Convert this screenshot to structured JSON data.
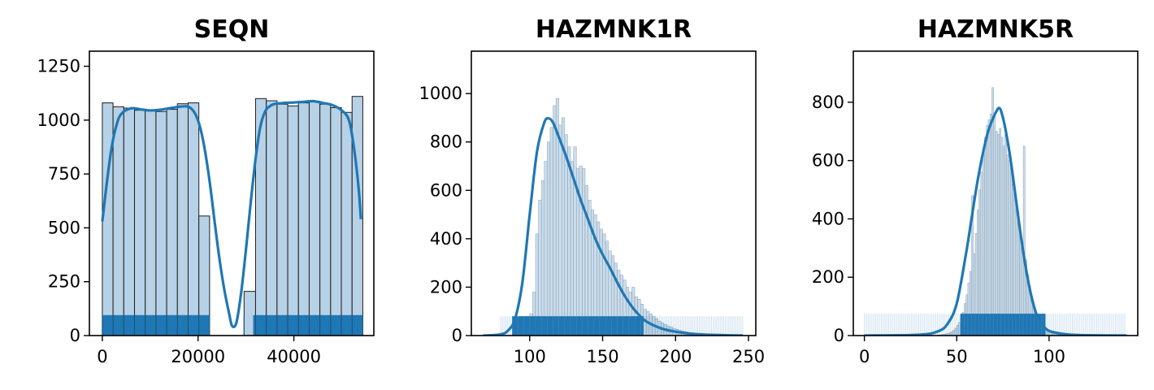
{
  "colors": {
    "bar_fill": "#b7d1e6",
    "bar_stroke": "#1f1f1f",
    "kde_line": "#1f77b4",
    "rug": "#1f77b4"
  },
  "chart_data": [
    {
      "type": "histogram",
      "title": "SEQN",
      "xlabel": "",
      "ylabel": "",
      "xlim": [
        -2700,
        56700
      ],
      "ylim": [
        0,
        1320
      ],
      "xticks": [
        0,
        20000,
        40000
      ],
      "xtick_labels": [
        "0",
        "20000",
        "40000"
      ],
      "yticks": [
        0,
        250,
        500,
        750,
        1000,
        1250
      ],
      "ytick_labels": [
        "0",
        "250",
        "500",
        "750",
        "1000",
        "1250"
      ],
      "bins": [
        {
          "x0": 0,
          "x1": 2240,
          "y": 1080
        },
        {
          "x0": 2240,
          "x1": 4480,
          "y": 1062
        },
        {
          "x0": 4480,
          "x1": 6720,
          "y": 1056
        },
        {
          "x0": 6720,
          "x1": 8960,
          "y": 1046
        },
        {
          "x0": 8960,
          "x1": 11200,
          "y": 1046
        },
        {
          "x0": 11200,
          "x1": 13440,
          "y": 1040
        },
        {
          "x0": 13440,
          "x1": 15680,
          "y": 1050
        },
        {
          "x0": 15680,
          "x1": 17920,
          "y": 1076
        },
        {
          "x0": 17920,
          "x1": 20160,
          "y": 1080
        },
        {
          "x0": 20160,
          "x1": 22400,
          "y": 555
        },
        {
          "x0": 29600,
          "x1": 32000,
          "y": 205
        },
        {
          "x0": 32000,
          "x1": 34240,
          "y": 1100
        },
        {
          "x0": 34240,
          "x1": 36480,
          "y": 1090
        },
        {
          "x0": 36480,
          "x1": 38720,
          "y": 1074
        },
        {
          "x0": 38720,
          "x1": 40960,
          "y": 1066
        },
        {
          "x0": 40960,
          "x1": 43200,
          "y": 1080
        },
        {
          "x0": 43200,
          "x1": 45440,
          "y": 1088
        },
        {
          "x0": 45440,
          "x1": 47680,
          "y": 1074
        },
        {
          "x0": 47680,
          "x1": 49920,
          "y": 1058
        },
        {
          "x0": 49920,
          "x1": 52160,
          "y": 1036
        },
        {
          "x0": 52160,
          "x1": 54400,
          "y": 1110
        }
      ],
      "kde": {
        "x": [
          0,
          1000,
          2000,
          3000,
          4000,
          6000,
          8000,
          10000,
          12000,
          14000,
          16000,
          17500,
          18500,
          19500,
          20500,
          21500,
          22500,
          23500,
          24500,
          25500,
          26500,
          27100,
          28000,
          29000,
          30000,
          31000,
          32000,
          33000,
          34000,
          35000,
          36000,
          38000,
          40000,
          42000,
          44000,
          46000,
          48000,
          50000,
          51500,
          52500,
          53500,
          54000
        ],
        "y": [
          530,
          720,
          880,
          980,
          1030,
          1055,
          1050,
          1045,
          1048,
          1055,
          1062,
          1064,
          1055,
          1025,
          960,
          850,
          700,
          520,
          350,
          210,
          100,
          45,
          60,
          200,
          400,
          620,
          820,
          970,
          1040,
          1065,
          1075,
          1080,
          1082,
          1085,
          1088,
          1080,
          1070,
          1045,
          1000,
          880,
          690,
          540
        ]
      },
      "rug": {
        "x_min": 0,
        "x_max": 54400,
        "gap": [
          22400,
          31500
        ],
        "height": 95
      }
    },
    {
      "type": "histogram",
      "title": "HAZMNK1R",
      "xlabel": "",
      "ylabel": "",
      "xlim": [
        60,
        255
      ],
      "ylim": [
        0,
        1175
      ],
      "xticks": [
        100,
        150,
        200,
        250
      ],
      "xtick_labels": [
        "100",
        "150",
        "200",
        "250"
      ],
      "yticks": [
        0,
        200,
        400,
        600,
        800,
        1000
      ],
      "ytick_labels": [
        "0",
        "200",
        "400",
        "600",
        "800",
        "1000"
      ],
      "bins_start": 68,
      "bin_width": 2,
      "counts": [
        0,
        0,
        0,
        0,
        0,
        0,
        0,
        0,
        0,
        0,
        2,
        5,
        8,
        15,
        25,
        45,
        90,
        180,
        420,
        560,
        640,
        720,
        800,
        860,
        950,
        980,
        870,
        900,
        830,
        780,
        720,
        780,
        690,
        700,
        690,
        620,
        560,
        520,
        500,
        470,
        440,
        420,
        390,
        350,
        330,
        300,
        270,
        250,
        230,
        200,
        180,
        200,
        160,
        150,
        130,
        110,
        100,
        90,
        80,
        70,
        60,
        52,
        46,
        40,
        35,
        30,
        26,
        22,
        19,
        16,
        13,
        11,
        9,
        8,
        7,
        6,
        5,
        4,
        4,
        3,
        3,
        2,
        2,
        2,
        1,
        1,
        1,
        1,
        1,
        0
      ],
      "kde": {
        "x": [
          68,
          80,
          85,
          90,
          95,
          100,
          105,
          110,
          113,
          116,
          120,
          125,
          130,
          135,
          140,
          145,
          150,
          155,
          160,
          165,
          170,
          175,
          180,
          190,
          200,
          210,
          220,
          230,
          246
        ],
        "y": [
          0,
          5,
          20,
          70,
          220,
          500,
          760,
          880,
          897,
          880,
          820,
          740,
          650,
          560,
          480,
          400,
          335,
          280,
          220,
          165,
          120,
          85,
          58,
          30,
          16,
          8,
          4,
          2,
          0
        ]
      },
      "rug": {
        "x_min": 80,
        "x_max": 246,
        "dense": [
          88,
          178
        ],
        "height": 80
      }
    },
    {
      "type": "histogram",
      "title": "HAZMNK5R",
      "xlabel": "",
      "ylabel": "",
      "xlim": [
        -6,
        148
      ],
      "ylim": [
        0,
        975
      ],
      "xticks": [
        0,
        50,
        100
      ],
      "xtick_labels": [
        "0",
        "50",
        "100"
      ],
      "yticks": [
        0,
        200,
        400,
        600,
        800
      ],
      "ytick_labels": [
        "0",
        "200",
        "400",
        "600",
        "800"
      ],
      "bins_start": 40,
      "bin_width": 1,
      "counts": [
        2,
        3,
        4,
        5,
        6,
        8,
        10,
        14,
        18,
        25,
        35,
        45,
        60,
        80,
        110,
        140,
        180,
        220,
        480,
        280,
        350,
        430,
        500,
        560,
        620,
        680,
        720,
        740,
        760,
        850,
        750,
        700,
        690,
        710,
        680,
        650,
        690,
        620,
        600,
        560,
        520,
        470,
        430,
        390,
        340,
        300,
        650,
        260,
        210,
        170,
        135,
        110,
        85,
        65,
        50,
        40,
        32,
        25,
        20,
        15,
        12,
        10,
        8,
        6,
        5,
        4,
        3,
        3,
        2,
        2
      ],
      "kde": {
        "x": [
          0,
          30,
          40,
          45,
          50,
          55,
          58,
          61,
          64,
          67,
          70,
          72,
          73,
          74,
          76,
          79,
          82,
          85,
          88,
          91,
          94,
          98,
          102,
          110,
          120,
          142
        ],
        "y": [
          0,
          3,
          15,
          40,
          110,
          280,
          400,
          520,
          620,
          700,
          750,
          775,
          780,
          770,
          720,
          610,
          470,
          330,
          210,
          120,
          60,
          25,
          12,
          4,
          1,
          0
        ]
      },
      "rug": {
        "x_min": 0,
        "x_max": 142,
        "dense": [
          52,
          98
        ],
        "height": 75
      }
    }
  ]
}
